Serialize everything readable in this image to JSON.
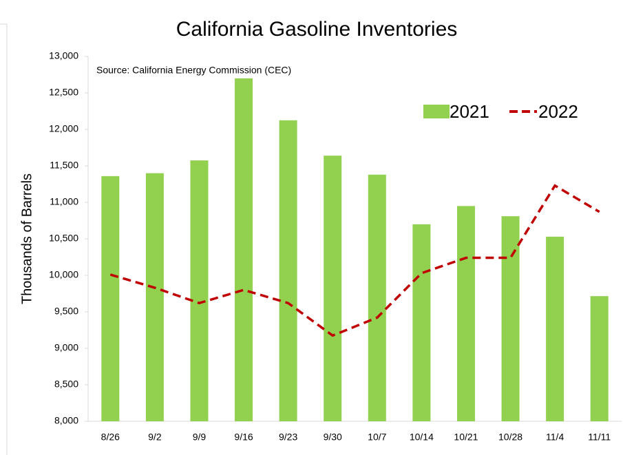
{
  "chart_data": {
    "type": "bar_line",
    "title": "California Gasoline Inventories",
    "annotation": "Source: California Energy Commission (CEC)",
    "y_label": "Thousands of Barrels",
    "categories": [
      "8/26",
      "9/2",
      "9/9",
      "9/16",
      "9/23",
      "9/30",
      "10/7",
      "10/14",
      "10/21",
      "10/28",
      "11/4",
      "11/11"
    ],
    "series": [
      {
        "name": "2021",
        "type": "bar",
        "color": "#92d050",
        "values": [
          11360,
          11400,
          11575,
          12700,
          12125,
          11640,
          11380,
          10700,
          10950,
          10810,
          10530,
          9715
        ]
      },
      {
        "name": "2022",
        "type": "line",
        "color": "#c00000",
        "dash": true,
        "values": [
          10010,
          9830,
          9620,
          9800,
          9620,
          9175,
          9420,
          10030,
          10240,
          10240,
          11230,
          10870
        ]
      }
    ],
    "ylim": [
      8000,
      13000
    ],
    "yticks": [
      {
        "value": 8000,
        "label": "8,000"
      },
      {
        "value": 8500,
        "label": "8,500"
      },
      {
        "value": 9000,
        "label": "9,000"
      },
      {
        "value": 9500,
        "label": "9,500"
      },
      {
        "value": 10000,
        "label": "10,000"
      },
      {
        "value": 10500,
        "label": "10,500"
      },
      {
        "value": 11000,
        "label": "11,000"
      },
      {
        "value": 11500,
        "label": "11,500"
      },
      {
        "value": 12000,
        "label": "12,000"
      },
      {
        "value": 12500,
        "label": "12,500"
      },
      {
        "value": 13000,
        "label": "13,000"
      }
    ],
    "legend": "top-right"
  }
}
